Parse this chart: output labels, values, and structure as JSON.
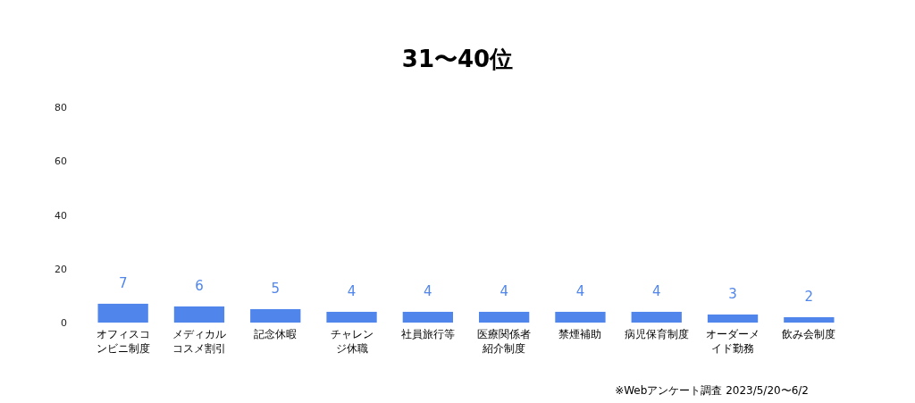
{
  "chart_data": {
    "type": "bar",
    "title": "31〜40位",
    "categories": [
      "オフィスコンビニ制度",
      "メディカルコスメ割引",
      "記念休暇",
      "チャレンジ休職",
      "社員旅行等",
      "医療関係者紹介制度",
      "禁煙補助",
      "病児保育制度",
      "オーダーメイド勤務",
      "飲み会制度"
    ],
    "values": [
      7,
      6,
      5,
      4,
      4,
      4,
      4,
      4,
      3,
      2
    ],
    "color": "#5086ec",
    "ylim": [
      0,
      80
    ],
    "yticks": [
      0,
      20,
      40,
      60,
      80
    ],
    "data_labels": true,
    "annotations": [
      "※Webアンケート調査 2023/5/20〜6/2"
    ]
  }
}
